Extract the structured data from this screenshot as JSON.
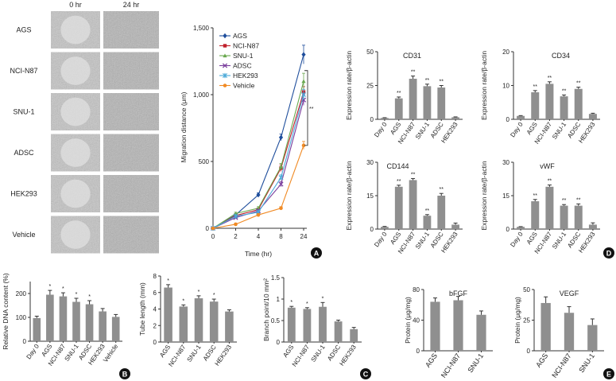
{
  "micrographs": {
    "col_labels": [
      "0 hr",
      "24 hr"
    ],
    "row_labels": [
      "AGS",
      "NCI-N87",
      "SNU-1",
      "ADSC",
      "HEK293",
      "Vehicle"
    ]
  },
  "panel_letters": {
    "A": "A",
    "B": "B",
    "C": "C",
    "D": "D",
    "E": "E"
  },
  "chart_data": [
    {
      "id": "A",
      "type": "line",
      "x": [
        0,
        2,
        4,
        8,
        24
      ],
      "xticklabels": [
        "0",
        "2",
        "4",
        "8",
        "24"
      ],
      "xlabel": "Time (hr)",
      "ylabel": "Migration distance (μm)",
      "ylim": [
        0,
        1500
      ],
      "yticks": [
        0,
        500,
        1000,
        1500
      ],
      "yticklabels": [
        "0",
        "500",
        "1,000",
        "1,500"
      ],
      "legend_position": "top-left",
      "significance": "**",
      "series": [
        {
          "name": "AGS",
          "color": "#1f4e9c",
          "marker": "diamond",
          "values": [
            0,
            100,
            250,
            680,
            1300
          ],
          "errors": [
            0,
            10,
            15,
            25,
            70
          ]
        },
        {
          "name": "NCI-N87",
          "color": "#c0202a",
          "marker": "square",
          "values": [
            0,
            95,
            140,
            450,
            1020
          ],
          "errors": [
            0,
            10,
            12,
            25,
            40
          ]
        },
        {
          "name": "SNU-1",
          "color": "#6aa84f",
          "marker": "triangle",
          "values": [
            0,
            110,
            150,
            460,
            1100
          ],
          "errors": [
            0,
            10,
            12,
            25,
            60
          ]
        },
        {
          "name": "ADSC",
          "color": "#7a3e9d",
          "marker": "x",
          "values": [
            0,
            80,
            130,
            330,
            960
          ],
          "errors": [
            0,
            10,
            12,
            20,
            40
          ]
        },
        {
          "name": "HEK293",
          "color": "#4aa9d8",
          "marker": "star",
          "values": [
            0,
            90,
            120,
            380,
            1000
          ],
          "errors": [
            0,
            10,
            12,
            20,
            40
          ]
        },
        {
          "name": "Vehicle",
          "color": "#f08a24",
          "marker": "circle",
          "values": [
            0,
            30,
            100,
            150,
            620
          ],
          "errors": [
            0,
            8,
            10,
            12,
            30
          ]
        }
      ]
    },
    {
      "id": "B",
      "type": "bar",
      "categories": [
        "Day 0",
        "AGS",
        "NCI-N87",
        "SNU-1",
        "ADSC",
        "HEK293",
        "Vehicle"
      ],
      "values": [
        97,
        195,
        188,
        165,
        155,
        125,
        102
      ],
      "errors": [
        8,
        18,
        15,
        15,
        15,
        12,
        10
      ],
      "stars": [
        "",
        "*",
        "*",
        "*",
        "*",
        "",
        ""
      ],
      "ylabel": "Relative DNA content (%)",
      "ylim": [
        0,
        250
      ],
      "yticks": [
        0,
        100,
        200
      ]
    },
    {
      "id": "C1",
      "type": "bar",
      "categories": [
        "AGS",
        "NCI-N87",
        "SNU-1",
        "ADSC",
        "HEK293"
      ],
      "values": [
        6.6,
        4.3,
        5.3,
        4.9,
        3.7
      ],
      "errors": [
        0.35,
        0.2,
        0.3,
        0.3,
        0.2
      ],
      "stars": [
        "*",
        "*",
        "*",
        "*",
        ""
      ],
      "ylabel": "Tube length (mm)",
      "ylim": [
        0,
        8
      ],
      "yticks": [
        0,
        2,
        4,
        6,
        8
      ]
    },
    {
      "id": "C2",
      "type": "bar",
      "categories": [
        "AGS",
        "NCI-N87",
        "SNU-1",
        "ADSC",
        "HEK293"
      ],
      "values": [
        0.8,
        0.77,
        0.82,
        0.48,
        0.3
      ],
      "errors": [
        0.03,
        0.03,
        0.1,
        0.03,
        0.04
      ],
      "stars": [
        "*",
        "*",
        "*",
        "",
        ""
      ],
      "ylabel": "Branch point/10 mm²",
      "ylim": [
        0,
        1.5
      ],
      "yticks": [
        0,
        0.5,
        1,
        1.5
      ],
      "yticklabels": [
        "0",
        "0.5",
        "1",
        "1.5"
      ]
    },
    {
      "id": "D1",
      "type": "bar",
      "title": "CD31",
      "categories": [
        "Day 0",
        "AGS",
        "NCI-N87",
        "SNU-1",
        "ADSC",
        "HEK293"
      ],
      "values": [
        1,
        15.5,
        30,
        24.5,
        23.5,
        1.5
      ],
      "errors": [
        0.2,
        1,
        2,
        1.5,
        1.5,
        0.3
      ],
      "stars": [
        "",
        "**",
        "**",
        "**",
        "**",
        ""
      ],
      "ylabel": "Expression rate/β-actin",
      "ylim": [
        0,
        50
      ],
      "yticks": [
        0,
        25,
        50
      ]
    },
    {
      "id": "D2",
      "type": "bar",
      "title": "CD34",
      "categories": [
        "Day 0",
        "AGS",
        "NCI-N87",
        "SNU-1",
        "ADSC",
        "HEK293"
      ],
      "values": [
        1,
        8,
        10.5,
        6.8,
        9,
        1.6
      ],
      "errors": [
        0.1,
        0.5,
        0.6,
        0.4,
        0.5,
        0.2
      ],
      "stars": [
        "",
        "**",
        "**",
        "**",
        "**",
        ""
      ],
      "ylabel": "Expression rate/β-actin",
      "ylim": [
        0,
        20
      ],
      "yticks": [
        0,
        10,
        20
      ]
    },
    {
      "id": "D3",
      "type": "bar",
      "title": "CD144",
      "categories": [
        "Day 0",
        "AGS",
        "NCI-N87",
        "SNU-1",
        "ADSC",
        "HEK293"
      ],
      "values": [
        1,
        19,
        22,
        6,
        15,
        2
      ],
      "errors": [
        0.2,
        0.7,
        0.7,
        0.5,
        1,
        0.7
      ],
      "stars": [
        "",
        "**",
        "**",
        "**",
        "**",
        ""
      ],
      "ylabel": "Expression rate/β-actin",
      "ylim": [
        0,
        30
      ],
      "yticks": [
        0,
        15,
        30
      ]
    },
    {
      "id": "D4",
      "type": "bar",
      "title": "vWF",
      "categories": [
        "Day 0",
        "AGS",
        "NCI-N87",
        "SNU-1",
        "ADSC",
        "HEK293"
      ],
      "values": [
        1,
        12.5,
        19,
        10.5,
        10.5,
        2
      ],
      "errors": [
        0.1,
        0.8,
        0.8,
        0.5,
        0.8,
        0.8
      ],
      "stars": [
        "",
        "**",
        "**",
        "**",
        "**",
        ""
      ],
      "ylabel": "Expression rate/β-actin",
      "ylim": [
        0,
        30
      ],
      "yticks": [
        0,
        15,
        30
      ]
    },
    {
      "id": "E1",
      "type": "bar",
      "title": "bFGF",
      "categories": [
        "AGS",
        "NCI-N87",
        "SNU-1"
      ],
      "values": [
        64,
        66,
        47
      ],
      "errors": [
        5,
        5,
        5
      ],
      "ylabel": "Protein (μg/mg)",
      "ylim": [
        0,
        80
      ],
      "yticks": [
        0,
        40,
        80
      ]
    },
    {
      "id": "E2",
      "type": "bar",
      "title": "VEGF",
      "categories": [
        "AGS",
        "NCI-N87",
        "SNU-1"
      ],
      "values": [
        39,
        31,
        21
      ],
      "errors": [
        5,
        5,
        5
      ],
      "ylabel": "Protein (μg/mg)",
      "ylim": [
        0,
        50
      ],
      "yticks": [
        0,
        25,
        50
      ]
    }
  ]
}
